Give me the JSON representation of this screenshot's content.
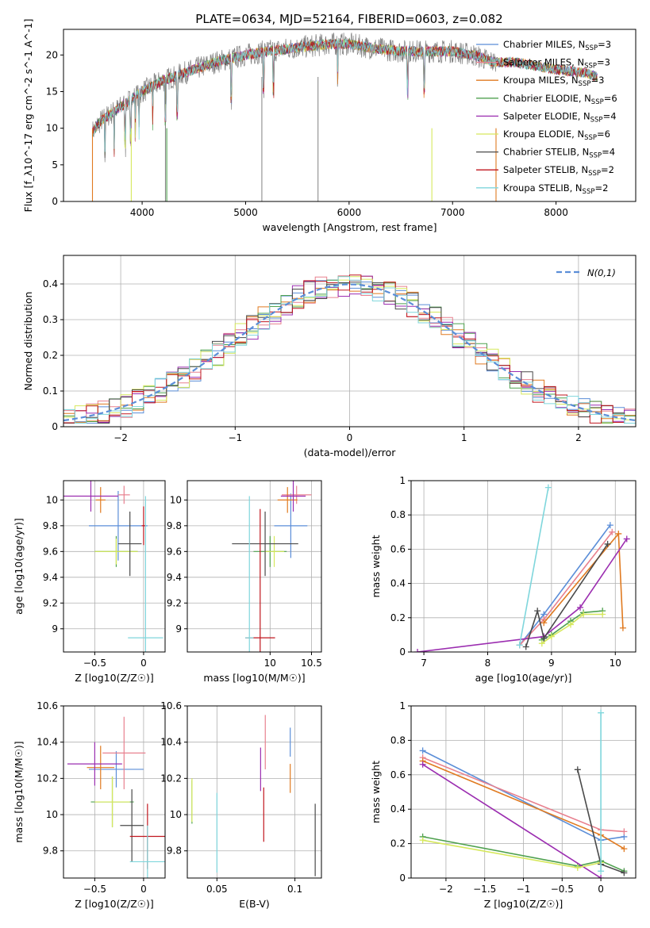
{
  "figure": {
    "title": "PLATE=0634, MJD=52164, FIBERID=0603, z=0.082"
  },
  "chart_data": [
    {
      "id": "spectrum",
      "type": "line",
      "xlabel": "wavelength [Angstrom, rest frame]",
      "ylabel": "Flux [f_λ10^-17 erg cm^-2 s^-1 A^-1]",
      "xlim": [
        3240,
        8770
      ],
      "ylim": [
        0,
        23.5
      ],
      "xticks": [
        4000,
        5000,
        6000,
        7000,
        8000
      ],
      "yticks": [
        0,
        5,
        10,
        15,
        20
      ],
      "grid": false,
      "legend": "top-right",
      "profile": {
        "x": [
          3520,
          3600,
          3800,
          4000,
          4200,
          4400,
          4700,
          5000,
          5200,
          5500,
          5800,
          6000,
          6200,
          6500,
          6800,
          7000,
          7200,
          7300,
          7400
        ],
        "y": [
          9.5,
          11,
          13,
          15,
          16.5,
          17.5,
          19,
          20,
          20.5,
          21,
          21.5,
          21.5,
          21,
          20.5,
          20.5,
          20.5,
          20,
          19.5,
          19
        ]
      },
      "model_profile": {
        "x": [
          7300,
          7600,
          8000,
          8300,
          8400
        ],
        "y": [
          19.5,
          19,
          18,
          17.5,
          17
        ]
      },
      "series": [
        {
          "name": "Chabrier MILES, N_SSP=3",
          "color": "#5b8ed8"
        },
        {
          "name": "Salpeter MILES, N_SSP=3",
          "color": "#e8818f"
        },
        {
          "name": "Kroupa MILES, N_SSP=3",
          "color": "#e07a20"
        },
        {
          "name": "Chabrier ELODIE, N_SSP=6",
          "color": "#4fa14f"
        },
        {
          "name": "Salpeter ELODIE, N_SSP=4",
          "color": "#9b2db0"
        },
        {
          "name": "Kroupa ELODIE, N_SSP=6",
          "color": "#d6e85c"
        },
        {
          "name": "Chabrier STELIB, N_SSP=4",
          "color": "#4a4a4a"
        },
        {
          "name": "Salpeter STELIB, N_SSP=2",
          "color": "#c0161e"
        },
        {
          "name": "Kroupa STELIB, N_SSP=2",
          "color": "#7fd6dc"
        }
      ]
    },
    {
      "id": "residuals",
      "type": "line",
      "xlabel": "(data-model)/error",
      "ylabel": "Normed distribution",
      "xlim": [
        -2.5,
        2.5
      ],
      "ylim": [
        0,
        0.48
      ],
      "xticks": [
        -2,
        -1,
        0,
        1,
        2
      ],
      "yticks": [
        0.0,
        0.1,
        0.2,
        0.3,
        0.4
      ],
      "grid": true,
      "legend": "top-right",
      "legend_label": "N(0,1)",
      "reference_color": "#5b8ed8"
    },
    {
      "id": "age_vs_Z",
      "type": "scatter",
      "xlabel": "Z [log10(Z/Z☉)]",
      "ylabel": "age  [log10(age/yr)]",
      "xlim": [
        -0.82,
        0.22
      ],
      "ylim": [
        8.82,
        10.15
      ],
      "xticks": [
        -0.5,
        0.0
      ],
      "yticks": [
        9.0,
        9.2,
        9.4,
        9.6,
        9.8,
        10.0
      ],
      "grid": true,
      "points": [
        {
          "x": -0.26,
          "y": 9.8,
          "xerr": 0.3,
          "yerr": 0.27,
          "color": "#5b8ed8"
        },
        {
          "x": -0.2,
          "y": 10.04,
          "xerr": 0.06,
          "yerr": 0.07,
          "color": "#e8818f"
        },
        {
          "x": -0.44,
          "y": 10.0,
          "xerr": 0.05,
          "yerr": 0.1,
          "color": "#e07a20"
        },
        {
          "x": -0.28,
          "y": 9.6,
          "xerr": 0.22,
          "yerr": 0.12,
          "color": "#4fa14f"
        },
        {
          "x": -0.54,
          "y": 10.03,
          "xerr": 0.28,
          "yerr": 0.12,
          "color": "#9b2db0"
        },
        {
          "x": -0.28,
          "y": 9.6,
          "xerr": 0.22,
          "yerr": 0.1,
          "color": "#d6e85c"
        },
        {
          "x": -0.14,
          "y": 9.66,
          "xerr": 0.12,
          "yerr": 0.25,
          "color": "#4a4a4a"
        },
        {
          "x": 0.0,
          "y": 9.8,
          "xerr": 0.02,
          "yerr": 0.15,
          "color": "#c0161e"
        },
        {
          "x": 0.02,
          "y": 8.93,
          "xerr": 0.18,
          "yerr": 1.1,
          "color": "#7fd6dc"
        }
      ]
    },
    {
      "id": "age_vs_mass",
      "type": "scatter",
      "xlabel": "mass [log10(M/M☉)]",
      "ylabel": "",
      "xlim": [
        9.0,
        10.62
      ],
      "ylim": [
        8.82,
        10.15
      ],
      "xticks": [
        10.0,
        10.5
      ],
      "yticks": [
        9.0,
        9.2,
        9.4,
        9.6,
        9.8,
        10.0
      ],
      "grid": true,
      "points": [
        {
          "x": 10.25,
          "y": 9.8,
          "xerr": 0.2,
          "yerr": 0.25,
          "color": "#5b8ed8"
        },
        {
          "x": 10.32,
          "y": 10.04,
          "xerr": 0.18,
          "yerr": 0.07,
          "color": "#e8818f"
        },
        {
          "x": 10.21,
          "y": 10.0,
          "xerr": 0.12,
          "yerr": 0.1,
          "color": "#e07a20"
        },
        {
          "x": 10.0,
          "y": 9.6,
          "xerr": 0.2,
          "yerr": 0.12,
          "color": "#4fa14f"
        },
        {
          "x": 10.28,
          "y": 10.03,
          "xerr": 0.15,
          "yerr": 0.12,
          "color": "#9b2db0"
        },
        {
          "x": 10.05,
          "y": 9.6,
          "xerr": 0.12,
          "yerr": 0.12,
          "color": "#d6e85c"
        },
        {
          "x": 9.94,
          "y": 9.66,
          "xerr": 0.4,
          "yerr": 0.25,
          "color": "#4a4a4a"
        },
        {
          "x": 9.88,
          "y": 8.93,
          "xerr": 0.18,
          "yerr": 1.0,
          "color": "#c0161e"
        },
        {
          "x": 9.75,
          "y": 8.93,
          "xerr": 0.05,
          "yerr": 1.1,
          "color": "#7fd6dc"
        }
      ]
    },
    {
      "id": "massweight_vs_age",
      "type": "line",
      "xlabel": "age  [log10(age/yr)]",
      "ylabel": "mass weight",
      "xlim": [
        6.8,
        10.32
      ],
      "ylim": [
        0,
        1.0
      ],
      "xticks": [
        7,
        8,
        9,
        10
      ],
      "yticks": [
        0.0,
        0.2,
        0.4,
        0.6,
        0.8,
        1.0
      ],
      "grid": true,
      "series": [
        {
          "color": "#5b8ed8",
          "x": [
            8.5,
            8.88,
            9.92
          ],
          "y": [
            0.04,
            0.22,
            0.74
          ]
        },
        {
          "color": "#e8818f",
          "x": [
            8.5,
            8.88,
            9.95
          ],
          "y": [
            0.04,
            0.19,
            0.7
          ]
        },
        {
          "color": "#e07a20",
          "x": [
            8.88,
            10.05,
            10.12
          ],
          "y": [
            0.17,
            0.69,
            0.14
          ]
        },
        {
          "color": "#4fa14f",
          "x": [
            8.85,
            9.0,
            9.3,
            9.5,
            9.8
          ],
          "y": [
            0.07,
            0.1,
            0.18,
            0.23,
            0.24
          ]
        },
        {
          "color": "#9b2db0",
          "x": [
            6.9,
            8.88,
            9.45,
            10.18
          ],
          "y": [
            0.0,
            0.09,
            0.26,
            0.66
          ]
        },
        {
          "color": "#d6e85c",
          "x": [
            8.85,
            9.0,
            9.3,
            9.5,
            9.8
          ],
          "y": [
            0.05,
            0.09,
            0.16,
            0.22,
            0.22
          ]
        },
        {
          "color": "#4a4a4a",
          "x": [
            8.6,
            8.78,
            8.88,
            9.88
          ],
          "y": [
            0.03,
            0.24,
            0.08,
            0.63
          ]
        },
        {
          "color": "#7fd6dc",
          "x": [
            8.5,
            8.95
          ],
          "y": [
            0.04,
            0.96
          ]
        }
      ]
    },
    {
      "id": "mass_vs_Z",
      "type": "scatter",
      "xlabel": "Z [log10(Z/Z☉)]",
      "ylabel": "mass [log10(M/M☉)]",
      "xlim": [
        -0.82,
        0.22
      ],
      "ylim": [
        9.65,
        10.6
      ],
      "xticks": [
        -0.5,
        0.0
      ],
      "yticks": [
        9.8,
        10.0,
        10.2,
        10.4,
        10.6
      ],
      "grid": true,
      "points": [
        {
          "x": -0.28,
          "y": 10.25,
          "xerr": 0.28,
          "yerr": 0.1,
          "color": "#5b8ed8"
        },
        {
          "x": -0.2,
          "y": 10.34,
          "xerr": 0.22,
          "yerr": 0.2,
          "color": "#e8818f"
        },
        {
          "x": -0.44,
          "y": 10.26,
          "xerr": 0.14,
          "yerr": 0.12,
          "color": "#e07a20"
        },
        {
          "x": -0.32,
          "y": 10.07,
          "xerr": 0.22,
          "yerr": 0.14,
          "color": "#4fa14f"
        },
        {
          "x": -0.5,
          "y": 10.28,
          "xerr": 0.28,
          "yerr": 0.12,
          "color": "#9b2db0"
        },
        {
          "x": -0.32,
          "y": 10.07,
          "xerr": 0.18,
          "yerr": 0.14,
          "color": "#d6e85c"
        },
        {
          "x": -0.12,
          "y": 9.94,
          "xerr": 0.12,
          "yerr": 0.2,
          "color": "#4a4a4a"
        },
        {
          "x": 0.04,
          "y": 9.88,
          "xerr": 0.18,
          "yerr": 0.18,
          "color": "#c0161e"
        },
        {
          "x": 0.04,
          "y": 9.74,
          "xerr": 0.18,
          "yerr": 0.2,
          "color": "#7fd6dc"
        }
      ]
    },
    {
      "id": "mass_vs_EBV",
      "type": "scatter",
      "xlabel": "E(B-V)",
      "ylabel": "",
      "xlim": [
        0.031,
        0.117
      ],
      "ylim": [
        9.65,
        10.6
      ],
      "xticks": [
        0.05,
        0.1
      ],
      "yticks": [
        9.8,
        10.0,
        10.2,
        10.4,
        10.6
      ],
      "grid": true,
      "points": [
        {
          "x": 0.097,
          "y": 10.4,
          "yerr": 0.08,
          "color": "#5b8ed8"
        },
        {
          "x": 0.081,
          "y": 10.4,
          "yerr": 0.15,
          "color": "#e8818f"
        },
        {
          "x": 0.097,
          "y": 10.2,
          "yerr": 0.08,
          "color": "#e07a20"
        },
        {
          "x": 0.034,
          "y": 10.07,
          "yerr": 0.12,
          "color": "#4fa14f"
        },
        {
          "x": 0.078,
          "y": 10.25,
          "yerr": 0.12,
          "color": "#9b2db0"
        },
        {
          "x": 0.034,
          "y": 10.08,
          "yerr": 0.12,
          "color": "#d6e85c"
        },
        {
          "x": 0.113,
          "y": 9.86,
          "yerr": 0.2,
          "color": "#4a4a4a"
        },
        {
          "x": 0.08,
          "y": 10.0,
          "yerr": 0.15,
          "color": "#c0161e"
        },
        {
          "x": 0.05,
          "y": 9.9,
          "yerr": 0.22,
          "color": "#7fd6dc"
        }
      ]
    },
    {
      "id": "massweight_vs_Z",
      "type": "line",
      "xlabel": "Z [log10(Z/Z☉)]",
      "ylabel": "mass weight",
      "xlim": [
        -2.45,
        0.45
      ],
      "ylim": [
        0,
        1.0
      ],
      "xticks": [
        -2.0,
        -1.5,
        -1.0,
        -0.5,
        0.0
      ],
      "yticks": [
        0.0,
        0.2,
        0.4,
        0.6,
        0.8,
        1.0
      ],
      "grid": true,
      "series": [
        {
          "color": "#5b8ed8",
          "x": [
            -2.3,
            0.0,
            0.3
          ],
          "y": [
            0.74,
            0.22,
            0.24
          ]
        },
        {
          "color": "#e8818f",
          "x": [
            -2.3,
            0.0,
            0.3
          ],
          "y": [
            0.7,
            0.28,
            0.27
          ]
        },
        {
          "color": "#e07a20",
          "x": [
            -2.3,
            0.0,
            0.3
          ],
          "y": [
            0.68,
            0.25,
            0.17
          ]
        },
        {
          "color": "#4fa14f",
          "x": [
            -2.3,
            -0.3,
            0.0,
            0.3
          ],
          "y": [
            0.24,
            0.07,
            0.1,
            0.04
          ]
        },
        {
          "color": "#9b2db0",
          "x": [
            -2.3,
            0.0
          ],
          "y": [
            0.66,
            0.0
          ]
        },
        {
          "color": "#d6e85c",
          "x": [
            -2.3,
            -0.3,
            0.0
          ],
          "y": [
            0.22,
            0.06,
            0.09
          ]
        },
        {
          "color": "#4a4a4a",
          "x": [
            -0.3,
            0.0,
            0.3
          ],
          "y": [
            0.63,
            0.08,
            0.03
          ]
        },
        {
          "color": "#7fd6dc",
          "x": [
            0.0,
            0.0
          ],
          "y": [
            0.04,
            0.96
          ]
        }
      ]
    }
  ]
}
